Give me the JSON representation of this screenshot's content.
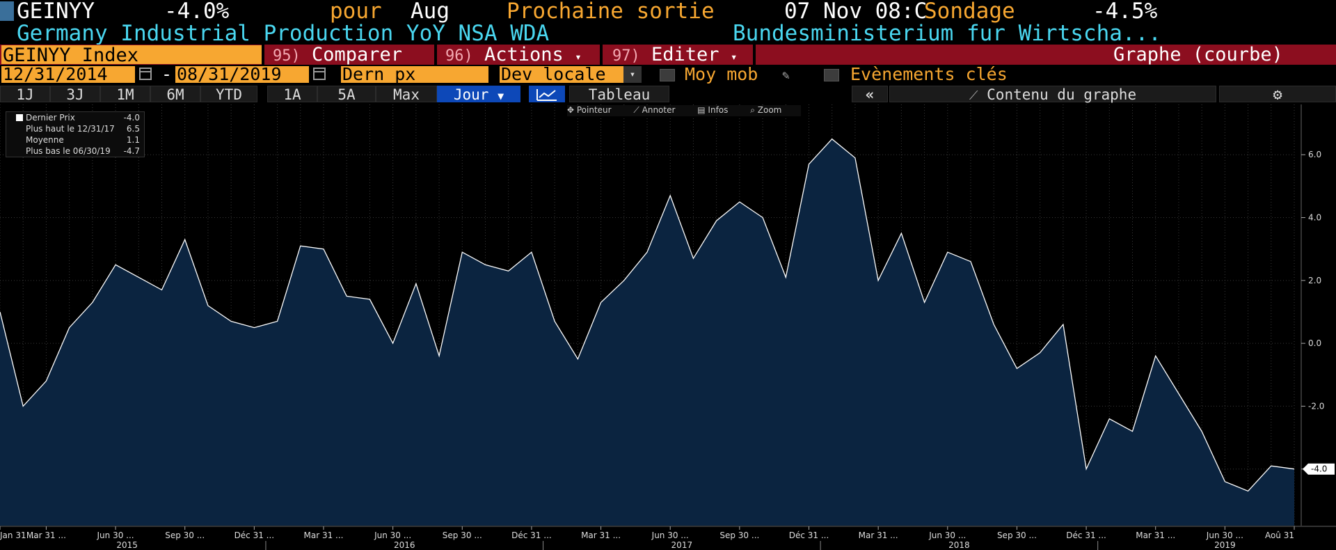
{
  "header": {
    "ticker": "GEINYY",
    "change": "-4.0%",
    "period_prefix": "pour",
    "period": "Aug",
    "next_release_label": "Prochaine sortie",
    "next_release": "07 Nov 08:C",
    "survey_label": "Sondage",
    "survey_value": "-4.5%",
    "title": "Germany Industrial Production YoY NSA WDA",
    "source": "Bundesministerium fur Wirtscha..."
  },
  "toolbar": {
    "index_field": "GEINYY Index",
    "compare_num": "95)",
    "compare_label": "Comparer",
    "actions_num": "96)",
    "actions_label": "Actions",
    "edit_num": "97)",
    "edit_label": "Editer",
    "graph_type": "Graphe (courbe)"
  },
  "controls": {
    "start_date": "12/31/2014",
    "dash": "-",
    "end_date": "08/31/2019",
    "price_field": "Dern px",
    "currency": "Dev locale",
    "moving_avg": "Moy mob",
    "key_events": "Evènements clés"
  },
  "ranges": [
    "1J",
    "3J",
    "1M",
    "6M",
    "YTD",
    "1A",
    "5A",
    "Max"
  ],
  "frequency": "Jour",
  "table_label": "Tableau",
  "collapse_label": "«",
  "chart_contents_label": "Contenu du graphe",
  "chart_tools": [
    "Pointeur",
    "Annoter",
    "Infos",
    "Zoom"
  ],
  "legend": [
    {
      "label": "Dernier Prix",
      "value": "-4.0"
    },
    {
      "label": "Plus haut le 12/31/17",
      "value": "6.5"
    },
    {
      "label": "Moyenne",
      "value": "1.1"
    },
    {
      "label": "Plus bas le 06/30/19",
      "value": "-4.7"
    }
  ],
  "colors": {
    "orange": "#f7a731",
    "cyan": "#4ad7f0",
    "red_bar": "#8c0e1f",
    "fill": "#0b2440",
    "line": "#ffffff"
  },
  "chart_data": {
    "type": "area",
    "series": [
      {
        "name": "Dernier Prix",
        "values": [
          1.0,
          -2.0,
          -1.2,
          0.5,
          1.3,
          2.5,
          2.1,
          1.7,
          3.3,
          1.2,
          0.7,
          0.5,
          0.7,
          3.1,
          3.0,
          1.5,
          1.4,
          0.0,
          1.9,
          -0.4,
          2.9,
          2.5,
          2.3,
          2.9,
          0.7,
          -0.5,
          1.3,
          2.0,
          2.9,
          4.7,
          2.7,
          3.9,
          4.5,
          4.0,
          2.1,
          5.7,
          6.5,
          5.9,
          2.0,
          3.5,
          1.3,
          2.9,
          2.6,
          0.6,
          -0.8,
          -0.3,
          0.6,
          -4.0,
          -2.4,
          -2.8,
          -0.4,
          -1.6,
          -2.8,
          -4.4,
          -4.7,
          -3.9,
          -4.0
        ]
      }
    ],
    "last_value_label": "-4.0",
    "ylim": [
      -5.8,
      7.6
    ],
    "yticks": [
      "-4.0",
      "-2.0",
      "0.0",
      "2.0",
      "4.0",
      "6.0"
    ],
    "x_ticks": [
      "Jan 31 ...",
      "Mar 31 ...",
      "Jun 30 ...",
      "Sep 30 ...",
      "Déc 31 ...",
      "Mar 31 ...",
      "Jun 30 ...",
      "Sep 30 ...",
      "Déc 31 ...",
      "Mar 31 ...",
      "Jun 30 ...",
      "Sep 30 ...",
      "Déc 31 ...",
      "Mar 31 ...",
      "Jun 30 ...",
      "Sep 30 ...",
      "Déc 31 ...",
      "Mar 31 ...",
      "Jun 30 ...",
      "Aoû 31"
    ],
    "years": [
      "2015",
      "2016",
      "2017",
      "2018",
      "2019"
    ],
    "grid": true
  }
}
